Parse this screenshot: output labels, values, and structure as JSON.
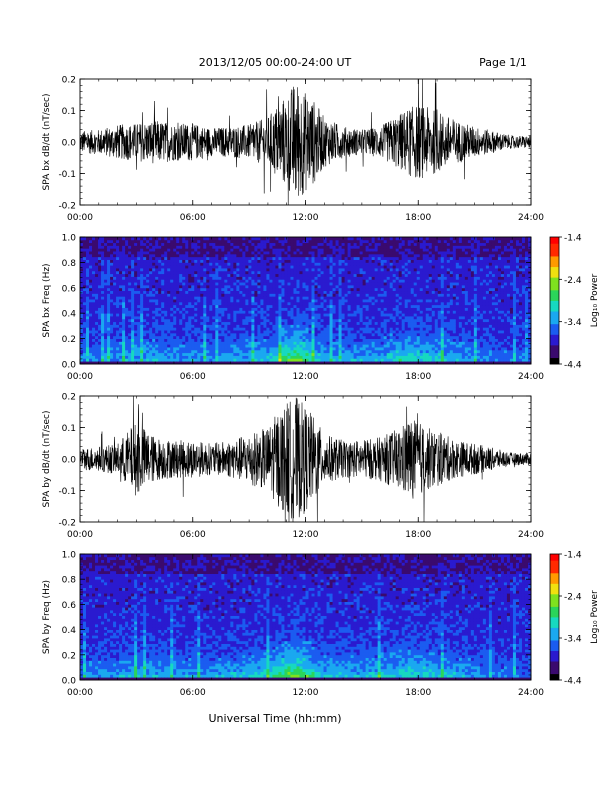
{
  "header": {
    "title": "2013/12/05  00:00-24:00 UT",
    "page": "Page 1/1"
  },
  "footer": {
    "xlabel": "Universal Time (hh:mm)"
  },
  "colorbar": {
    "label": "Log₁₀ Power",
    "ticks": [
      "-1.4",
      "-2.4",
      "-3.4",
      "-4.4"
    ],
    "colors": [
      "#000000",
      "#3a0a6e",
      "#2a1acf",
      "#1b5cf0",
      "#1aa8f0",
      "#17d9c0",
      "#2bd55a",
      "#7fe21f",
      "#f0e010",
      "#ff9a00",
      "#ff2a00",
      "#ff0000"
    ]
  },
  "chart_data": [
    {
      "type": "line",
      "ylabel": "SPA bx dB/dt (nT/sec)",
      "xlim": [
        0,
        24
      ],
      "ylim": [
        -0.2,
        0.2
      ],
      "x_ticks": [
        "00:00",
        "06:00",
        "12:00",
        "18:00",
        "24:00"
      ],
      "y_ticks": [
        "-0.2",
        "-0.1",
        "0.0",
        "0.1",
        "0.2"
      ],
      "line_color": "#000000",
      "envelope": {
        "x": [
          0,
          1,
          2,
          3,
          4,
          5,
          6,
          7,
          8,
          9,
          10,
          10.5,
          11,
          11.5,
          12,
          12.5,
          13,
          14,
          15,
          16,
          17,
          17.5,
          18,
          18.5,
          19,
          20,
          21,
          22,
          23,
          24
        ],
        "amplitude": [
          0.035,
          0.04,
          0.055,
          0.06,
          0.07,
          0.06,
          0.06,
          0.045,
          0.05,
          0.055,
          0.08,
          0.12,
          0.15,
          0.2,
          0.16,
          0.13,
          0.08,
          0.05,
          0.04,
          0.05,
          0.09,
          0.11,
          0.12,
          0.11,
          0.1,
          0.07,
          0.05,
          0.035,
          0.02,
          0.02
        ]
      }
    },
    {
      "type": "heatmap",
      "ylabel": "SPA bx Freq (Hz)",
      "xlim": [
        0,
        24
      ],
      "ylim": [
        0,
        1.0
      ],
      "x_ticks": [
        "00:00",
        "06:00",
        "12:00",
        "18:00",
        "24:00"
      ],
      "y_ticks": [
        "0.0",
        "0.2",
        "0.4",
        "0.6",
        "0.8",
        "1.0"
      ],
      "color_range": [
        -4.4,
        -1.4
      ],
      "activity": {
        "x": [
          0,
          1,
          2,
          3,
          4,
          5,
          6,
          7,
          8,
          9,
          10,
          10.5,
          11,
          11.5,
          12,
          12.5,
          13,
          14,
          15,
          16,
          17,
          17.5,
          18,
          18.5,
          19,
          20,
          21,
          22,
          23,
          24
        ],
        "level": [
          0.3,
          0.35,
          0.4,
          0.45,
          0.45,
          0.4,
          0.4,
          0.35,
          0.4,
          0.45,
          0.55,
          0.7,
          0.85,
          1.0,
          0.8,
          0.6,
          0.45,
          0.4,
          0.4,
          0.45,
          0.6,
          0.65,
          0.6,
          0.55,
          0.5,
          0.45,
          0.35,
          0.3,
          0.25,
          0.25
        ]
      }
    },
    {
      "type": "line",
      "ylabel": "SPA by dB/dt (nT/sec)",
      "xlim": [
        0,
        24
      ],
      "ylim": [
        -0.2,
        0.2
      ],
      "x_ticks": [
        "00:00",
        "06:00",
        "12:00",
        "18:00",
        "24:00"
      ],
      "y_ticks": [
        "-0.2",
        "-0.1",
        "0.0",
        "0.1",
        "0.2"
      ],
      "line_color": "#000000",
      "envelope": {
        "x": [
          0,
          1,
          2,
          3,
          4,
          5,
          6,
          7,
          8,
          9,
          10,
          10.5,
          11,
          11.5,
          12,
          12.5,
          13,
          14,
          15,
          16,
          17,
          17.5,
          18,
          18.5,
          19,
          20,
          21,
          22,
          23,
          24
        ],
        "amplitude": [
          0.035,
          0.04,
          0.05,
          0.12,
          0.07,
          0.06,
          0.06,
          0.05,
          0.06,
          0.08,
          0.1,
          0.15,
          0.18,
          0.2,
          0.17,
          0.13,
          0.08,
          0.06,
          0.06,
          0.07,
          0.1,
          0.13,
          0.12,
          0.1,
          0.09,
          0.06,
          0.05,
          0.035,
          0.02,
          0.02
        ]
      }
    },
    {
      "type": "heatmap",
      "ylabel": "SPA by Freq (Hz)",
      "xlim": [
        0,
        24
      ],
      "ylim": [
        0,
        1.0
      ],
      "x_ticks": [
        "00:00",
        "06:00",
        "12:00",
        "18:00",
        "24:00"
      ],
      "y_ticks": [
        "0.0",
        "0.2",
        "0.4",
        "0.6",
        "0.8",
        "1.0"
      ],
      "color_range": [
        -4.4,
        -1.4
      ],
      "activity": {
        "x": [
          0,
          1,
          2,
          3,
          4,
          5,
          6,
          7,
          8,
          9,
          10,
          10.5,
          11,
          11.5,
          12,
          12.5,
          13,
          14,
          15,
          16,
          17,
          17.5,
          18,
          18.5,
          19,
          20,
          21,
          22,
          23,
          24
        ],
        "level": [
          0.3,
          0.35,
          0.4,
          0.5,
          0.45,
          0.4,
          0.4,
          0.4,
          0.45,
          0.5,
          0.6,
          0.75,
          0.9,
          1.0,
          0.85,
          0.65,
          0.5,
          0.45,
          0.45,
          0.5,
          0.6,
          0.65,
          0.6,
          0.55,
          0.5,
          0.45,
          0.35,
          0.3,
          0.25,
          0.25
        ]
      }
    }
  ]
}
